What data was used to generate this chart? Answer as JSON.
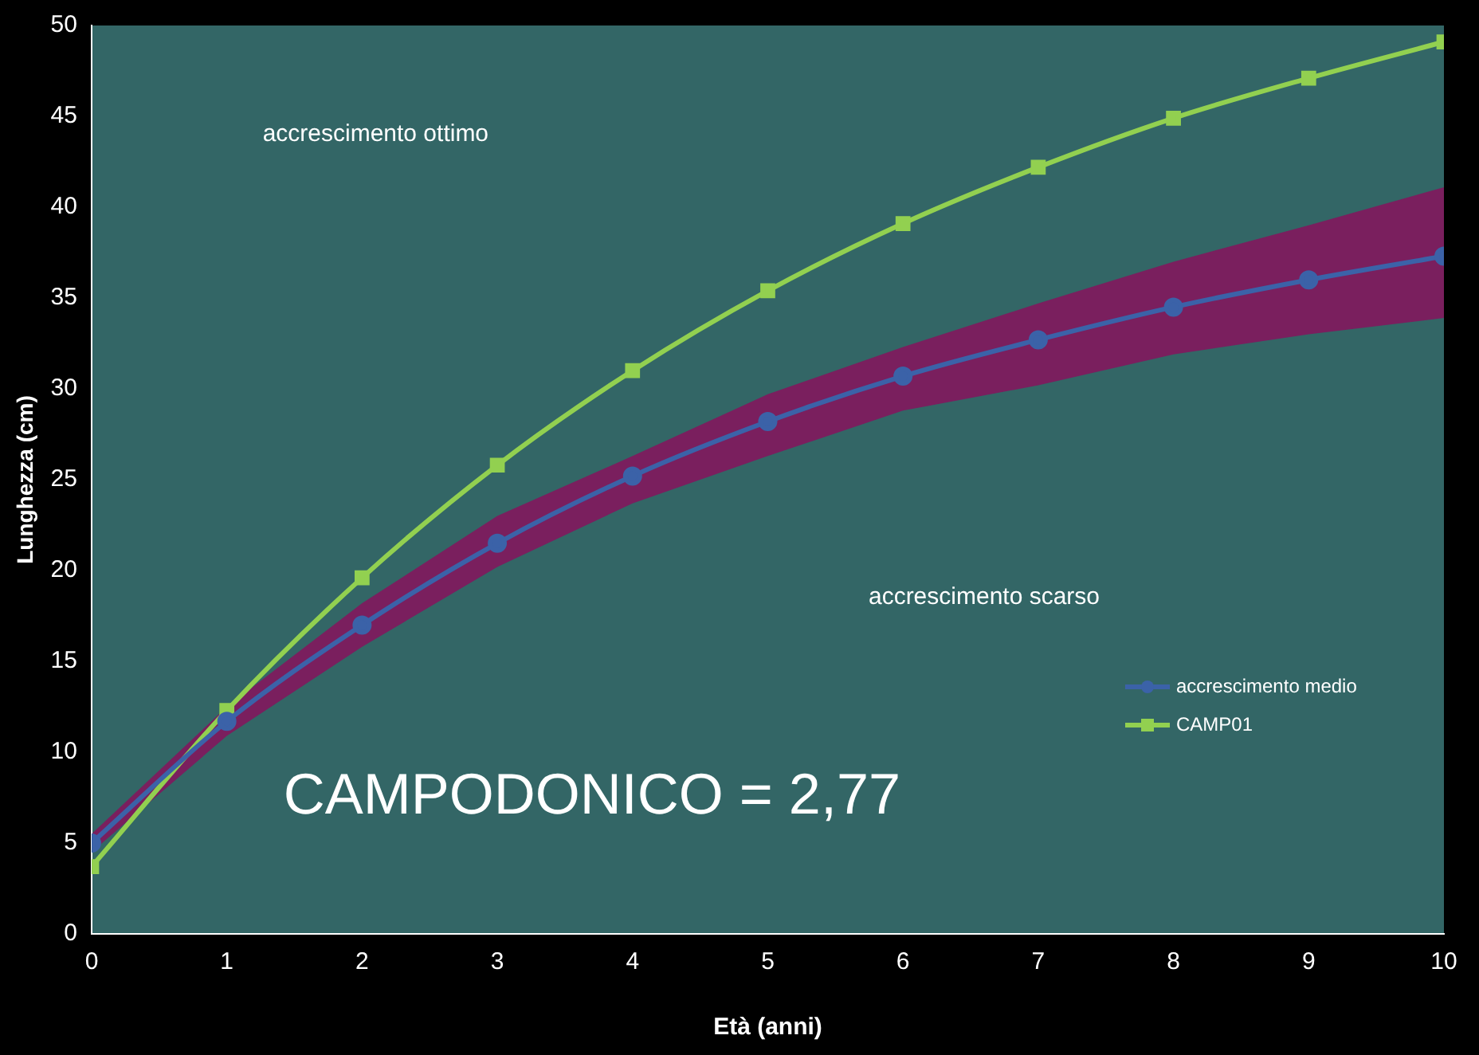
{
  "chart_data": {
    "type": "line",
    "xlabel": "Età (anni)",
    "ylabel": "Lunghezza (cm)",
    "x": [
      0,
      1,
      2,
      3,
      4,
      5,
      6,
      7,
      8,
      9,
      10
    ],
    "xlim": [
      0,
      10
    ],
    "xticks": [
      0,
      1,
      2,
      3,
      4,
      5,
      6,
      7,
      8,
      9,
      10
    ],
    "ylim": [
      0,
      50
    ],
    "yticks": [
      0,
      5,
      10,
      15,
      20,
      25,
      30,
      35,
      40,
      45,
      50
    ],
    "grid": false,
    "legend": "right",
    "series": [
      {
        "name": "accrescimento medio",
        "color": "#3b62a8",
        "marker": "circle",
        "values": [
          5.0,
          11.7,
          17.0,
          21.5,
          25.2,
          28.2,
          30.7,
          32.7,
          34.5,
          36.0,
          37.3
        ],
        "lower": [
          4.5,
          10.9,
          15.8,
          20.2,
          23.7,
          26.3,
          28.8,
          30.2,
          31.9,
          33.0,
          33.9
        ],
        "upper": [
          5.5,
          12.5,
          18.2,
          23.0,
          26.3,
          29.7,
          32.3,
          34.7,
          37.0,
          39.0,
          41.1
        ]
      },
      {
        "name": "CAMP01",
        "color": "#92d050",
        "marker": "square",
        "values": [
          3.7,
          12.3,
          19.6,
          25.8,
          31.0,
          35.4,
          39.1,
          42.2,
          44.9,
          47.1,
          49.1
        ]
      }
    ],
    "annotations": [
      "accrescimento ottimo",
      "accrescimento scarso",
      "CAMPODONICO = 2,77"
    ]
  }
}
